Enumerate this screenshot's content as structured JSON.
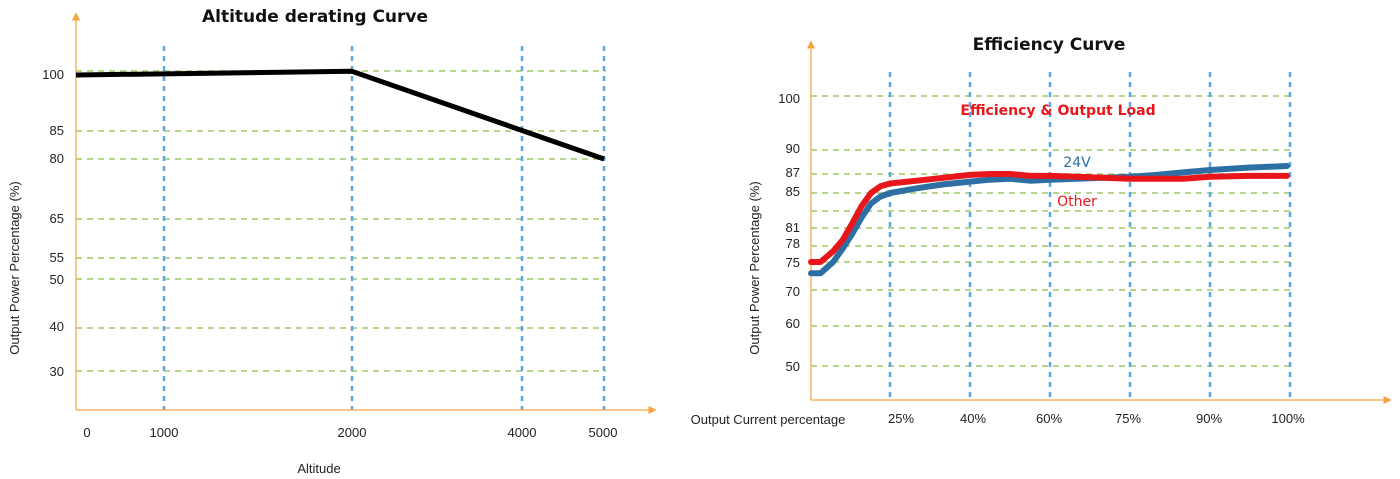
{
  "chart_data": [
    {
      "type": "line",
      "title": "Altitude derating Curve",
      "xlabel": "Altitude",
      "ylabel": "Output Power Percentage (%)",
      "x_ticks": [
        "0",
        "1000",
        "2000",
        "4000",
        "5000"
      ],
      "y_ticks": [
        "100",
        "85",
        "80",
        "65",
        "55",
        "50",
        "40",
        "30"
      ],
      "series": [
        {
          "x": [
            0,
            2000,
            5000
          ],
          "values": [
            100,
            101,
            80
          ],
          "color": "#000000"
        }
      ]
    },
    {
      "type": "line",
      "title": "Efficiency Curve",
      "xlabel": "Output Current percentage",
      "ylabel": "Output Power Percentage (%)",
      "x_ticks": [
        "25%",
        "40%",
        "60%",
        "75%",
        "90%",
        "100%"
      ],
      "y_ticks": [
        "100",
        "90",
        "87",
        "85",
        "81",
        "78",
        "75",
        "70",
        "60",
        "50"
      ],
      "annotation": {
        "text": "Efficiency & Output Load",
        "color": "#e8151b"
      },
      "series": [
        {
          "name": "24V",
          "color": "#2e6fa3",
          "x": [
            "0%",
            "3%",
            "7%",
            "10%",
            "13%",
            "16%",
            "19%",
            "22%",
            "25%",
            "30%",
            "35%",
            "40%",
            "45%",
            "50%",
            "55%",
            "60%",
            "65%",
            "70%",
            "75%",
            "80%",
            "85%",
            "90%",
            "95%",
            "100%"
          ],
          "values": [
            73,
            73,
            75,
            77.5,
            80,
            82.2,
            83.8,
            84.6,
            85.0,
            85.5,
            85.9,
            86.2,
            86.4,
            86.5,
            86.3,
            86.4,
            86.5,
            86.6,
            86.7,
            86.9,
            87.2,
            87.5,
            87.8,
            88.0
          ]
        },
        {
          "name": "Other",
          "color": "#e8151b",
          "x": [
            "0%",
            "3%",
            "7%",
            "10%",
            "13%",
            "16%",
            "19%",
            "22%",
            "25%",
            "30%",
            "35%",
            "40%",
            "45%",
            "50%",
            "55%",
            "60%",
            "65%",
            "70%",
            "75%",
            "80%",
            "85%",
            "90%",
            "95%",
            "100%"
          ],
          "values": [
            75,
            75,
            77,
            79,
            81.5,
            83.5,
            85.0,
            85.7,
            86.0,
            86.3,
            86.6,
            86.9,
            87.0,
            87.0,
            86.8,
            86.8,
            86.7,
            86.6,
            86.5,
            86.5,
            86.5,
            86.7,
            86.8,
            86.8
          ]
        }
      ]
    }
  ]
}
